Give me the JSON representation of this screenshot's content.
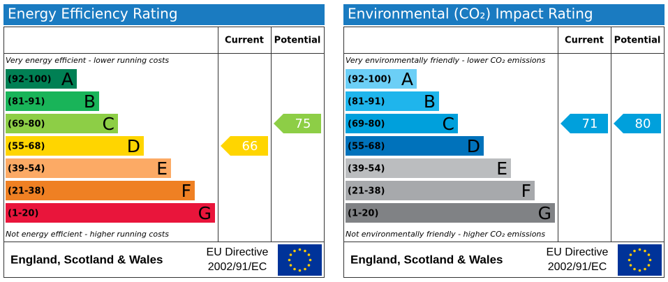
{
  "panels": [
    {
      "title": "Energy Efficiency Rating",
      "columns": [
        "Current",
        "Potential"
      ],
      "top_note": "Very energy efficient - lower running costs",
      "bottom_note": "Not energy efficient - higher running costs",
      "bands": [
        {
          "range": "(92-100)",
          "letter": "A",
          "color": "#008054"
        },
        {
          "range": "(81-91)",
          "letter": "B",
          "color": "#19b459"
        },
        {
          "range": "(69-80)",
          "letter": "C",
          "color": "#8dce46"
        },
        {
          "range": "(55-68)",
          "letter": "D",
          "color": "#ffd500"
        },
        {
          "range": "(39-54)",
          "letter": "E",
          "color": "#fcaa65"
        },
        {
          "range": "(21-38)",
          "letter": "F",
          "color": "#ef8023"
        },
        {
          "range": "(1-20)",
          "letter": "G",
          "color": "#e9153b"
        }
      ],
      "current": 66,
      "potential": 75,
      "footer": {
        "region": "England, Scotland & Wales",
        "directive": [
          "EU Directive",
          "2002/91/EC"
        ]
      }
    },
    {
      "title": "Environmental (CO₂) Impact Rating",
      "columns": [
        "Current",
        "Potential"
      ],
      "top_note": "Very environmentally friendly - lower CO₂ emissions",
      "bottom_note": "Not environmentally friendly - higher CO₂ emissions",
      "bands": [
        {
          "range": "(92-100)",
          "letter": "A",
          "color": "#6ccff6"
        },
        {
          "range": "(81-91)",
          "letter": "B",
          "color": "#1fb5ec"
        },
        {
          "range": "(69-80)",
          "letter": "C",
          "color": "#00a0dc"
        },
        {
          "range": "(55-68)",
          "letter": "D",
          "color": "#0072bb"
        },
        {
          "range": "(39-54)",
          "letter": "E",
          "color": "#bbbdbf"
        },
        {
          "range": "(21-38)",
          "letter": "F",
          "color": "#a7a9ac"
        },
        {
          "range": "(1-20)",
          "letter": "G",
          "color": "#808285"
        }
      ],
      "current": 71,
      "potential": 80,
      "footer": {
        "region": "England, Scotland & Wales",
        "directive": [
          "EU Directive",
          "2002/91/EC"
        ]
      }
    }
  ]
}
